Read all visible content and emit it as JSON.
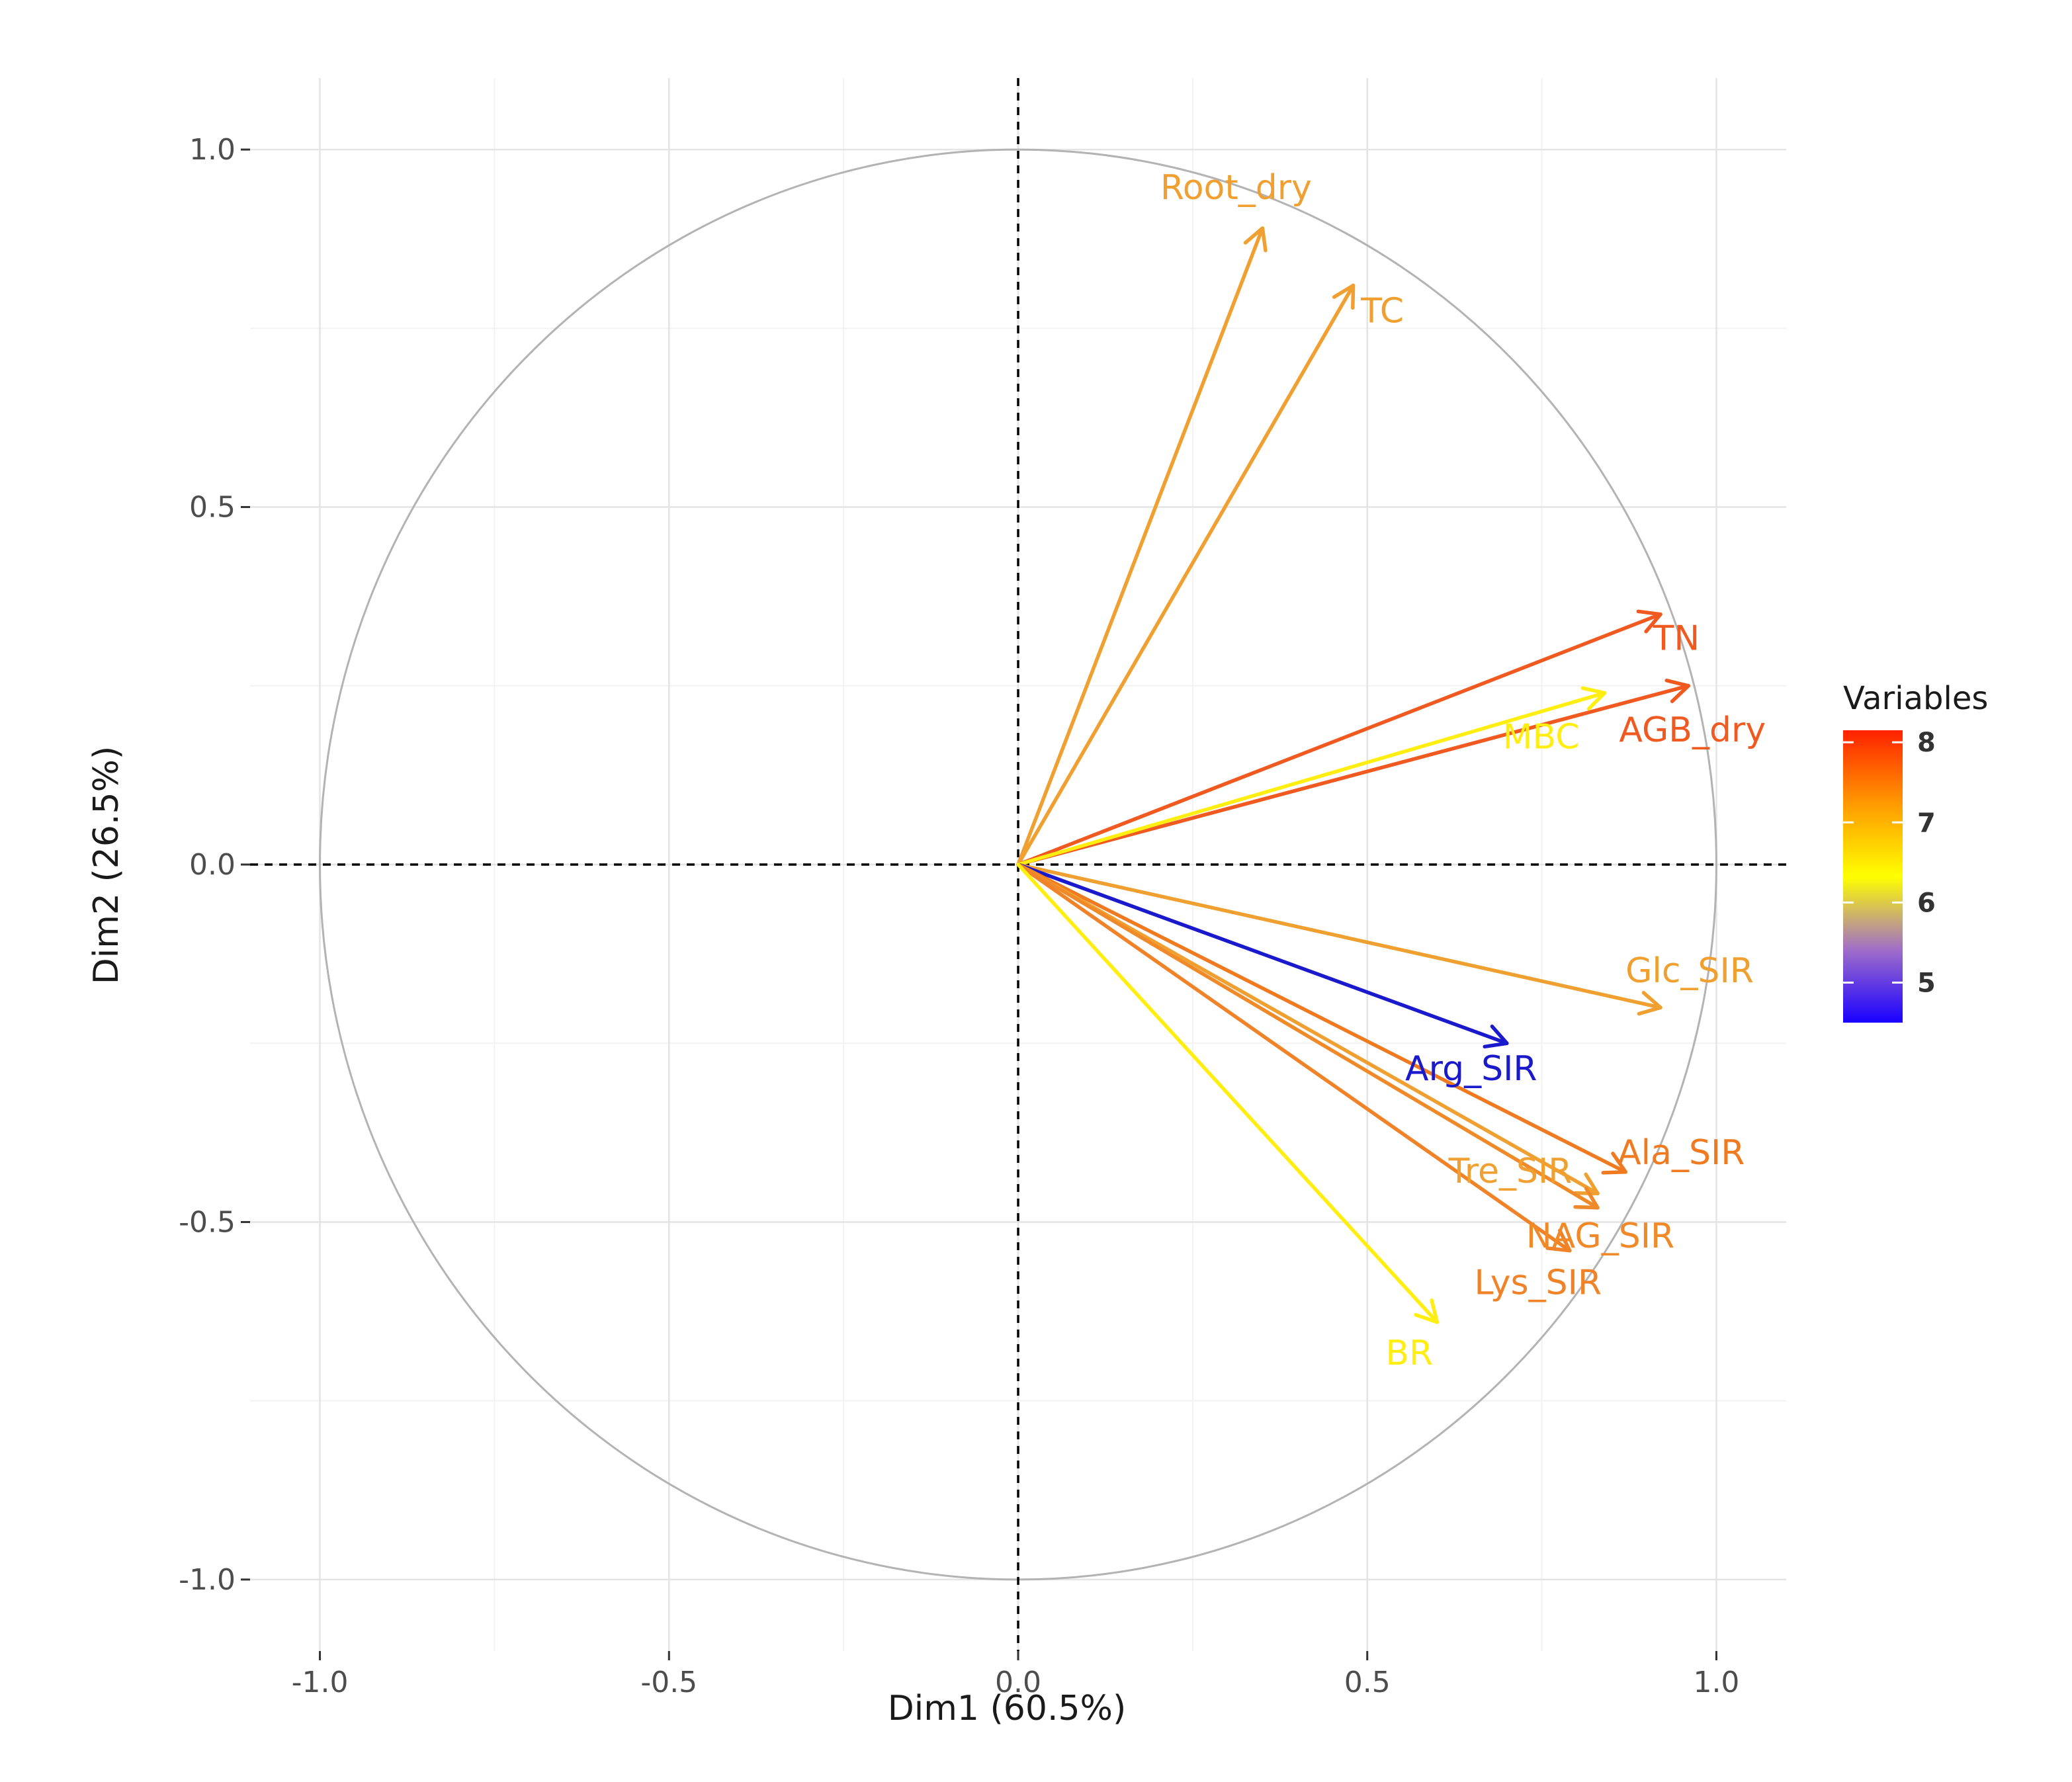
{
  "chart_data": {
    "type": "scatter",
    "subtype": "pca-variable-correlation-circle",
    "title": "",
    "xlabel": "Dim1 (60.5%)",
    "ylabel": "Dim2 (26.5%)",
    "xlim": [
      -1.1,
      1.1
    ],
    "ylim": [
      -1.1,
      1.1
    ],
    "xticks": [
      -1.0,
      -0.5,
      0.0,
      0.5,
      1.0
    ],
    "yticks": [
      -1.0,
      -0.5,
      0.0,
      0.5,
      1.0
    ],
    "xtick_labels": [
      "-1.0",
      "-0.5",
      "0.0",
      "0.5",
      "1.0"
    ],
    "ytick_labels": [
      "-1.0",
      "-0.5",
      "0.0",
      "0.5",
      "1.0"
    ],
    "grid": true,
    "unit_circle": true,
    "legend": {
      "title": "Variables",
      "position": "right",
      "range": [
        4.5,
        8.15
      ],
      "ticks": [
        5,
        6,
        7,
        8
      ],
      "tick_labels": [
        "5",
        "6",
        "7",
        "8"
      ],
      "gradient_colors": [
        "#1a00ff",
        "#a06ec8",
        "#ffff00",
        "#ff9900",
        "#ff2200"
      ]
    },
    "variables": [
      {
        "name": "Root_dry",
        "x": 0.35,
        "y": 0.89,
        "color_value": 6.9,
        "color": "#f0a030"
      },
      {
        "name": "TC",
        "x": 0.48,
        "y": 0.81,
        "color_value": 6.9,
        "color": "#f0a030"
      },
      {
        "name": "TN",
        "x": 0.92,
        "y": 0.35,
        "color_value": 7.8,
        "color": "#f05a20"
      },
      {
        "name": "AGB_dry",
        "x": 0.96,
        "y": 0.25,
        "color_value": 7.8,
        "color": "#f05a20"
      },
      {
        "name": "MBC",
        "x": 0.84,
        "y": 0.24,
        "color_value": 6.1,
        "color": "#ffee10"
      },
      {
        "name": "Glc_SIR",
        "x": 0.92,
        "y": -0.2,
        "color_value": 6.9,
        "color": "#f0a030"
      },
      {
        "name": "Arg_SIR",
        "x": 0.7,
        "y": -0.25,
        "color_value": 4.6,
        "color": "#1a1acc"
      },
      {
        "name": "Ala_SIR",
        "x": 0.87,
        "y": -0.43,
        "color_value": 7.4,
        "color": "#f07a20"
      },
      {
        "name": "Tre_SIR",
        "x": 0.83,
        "y": -0.46,
        "color_value": 6.9,
        "color": "#f0a030"
      },
      {
        "name": "NAG_SIR",
        "x": 0.83,
        "y": -0.48,
        "color_value": 7.2,
        "color": "#f08a28"
      },
      {
        "name": "Lys_SIR",
        "x": 0.79,
        "y": -0.54,
        "color_value": 7.3,
        "color": "#f08228"
      },
      {
        "name": "BR",
        "x": 0.6,
        "y": -0.64,
        "color_value": 6.2,
        "color": "#ffee10"
      }
    ]
  }
}
